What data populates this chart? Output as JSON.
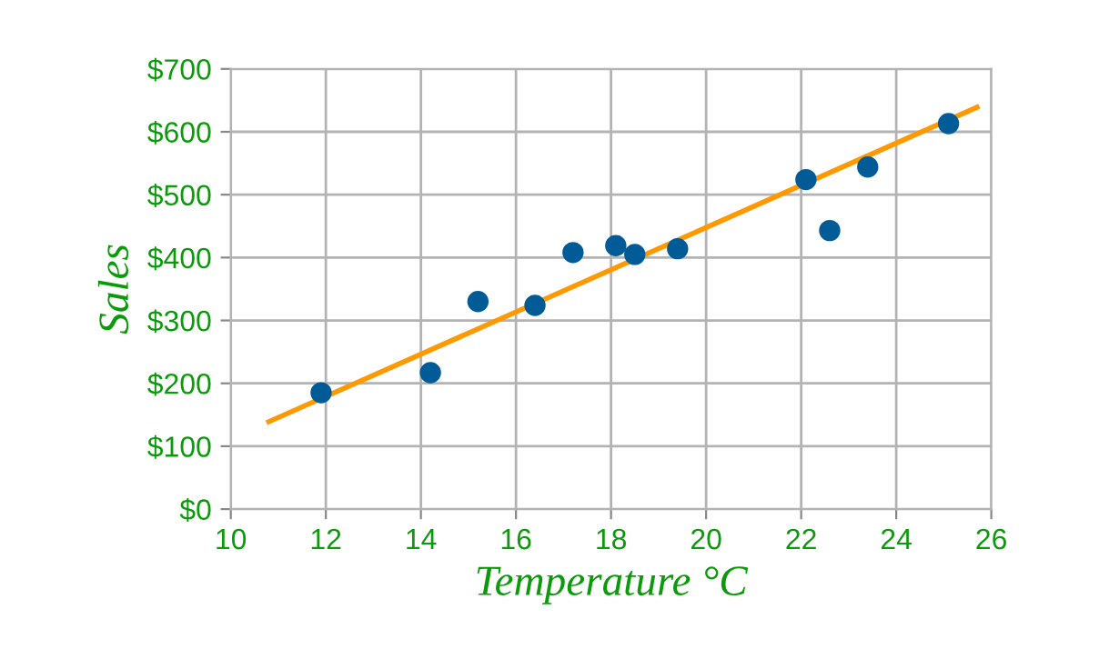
{
  "chart_data": {
    "type": "scatter",
    "xlabel": "Temperature °C",
    "ylabel": "Sales",
    "xlim": [
      10,
      26
    ],
    "xticks": [
      10,
      12,
      14,
      16,
      18,
      20,
      22,
      24,
      26
    ],
    "ylim": [
      0,
      700
    ],
    "yticks": [
      {
        "value": 0,
        "label": "$0"
      },
      {
        "value": 100,
        "label": "$100"
      },
      {
        "value": 200,
        "label": "$200"
      },
      {
        "value": 300,
        "label": "$300"
      },
      {
        "value": 400,
        "label": "$400"
      },
      {
        "value": 500,
        "label": "$500"
      },
      {
        "value": 600,
        "label": "$600"
      },
      {
        "value": 700,
        "label": "$700"
      }
    ],
    "grid": true,
    "marker": "circle",
    "series": [
      {
        "color": "#005b96",
        "x": [
          11.9,
          14.2,
          15.2,
          16.4,
          17.2,
          18.1,
          18.5,
          19.4,
          22.1,
          22.6,
          23.4,
          25.1
        ],
        "values": [
          185,
          217,
          330,
          324,
          408,
          419,
          405,
          414,
          524,
          443,
          544,
          613
        ]
      },
      {
        "type": "line",
        "color": "#ff9900",
        "marker": "none",
        "x": [
          10.8,
          25.7
        ],
        "values": [
          139,
          639
        ]
      }
    ]
  }
}
